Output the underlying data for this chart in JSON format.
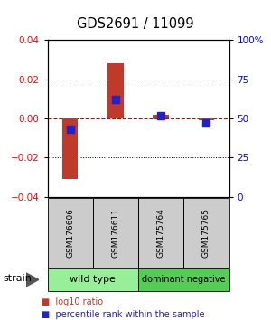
{
  "title": "GDS2691 / 11099",
  "samples": [
    "GSM176606",
    "GSM176611",
    "GSM175764",
    "GSM175765"
  ],
  "log10_ratio": [
    -0.031,
    0.028,
    0.002,
    -0.001
  ],
  "percentile_rank": [
    43,
    62,
    52,
    47
  ],
  "ylim_left": [
    -0.04,
    0.04
  ],
  "ylim_right": [
    0,
    100
  ],
  "yticks_left": [
    -0.04,
    -0.02,
    0,
    0.02,
    0.04
  ],
  "yticks_right": [
    0,
    25,
    50,
    75,
    100
  ],
  "bar_color": "#c0392b",
  "dot_color": "#2222cc",
  "hline_color": "#cc0000",
  "dot_color_line": "#cc0000",
  "sample_box_color": "#cccccc",
  "wt_color": "#99ee99",
  "dn_color": "#55cc55",
  "groups": [
    {
      "label": "wild type",
      "start": 0,
      "end": 2
    },
    {
      "label": "dominant negative",
      "start": 2,
      "end": 4
    }
  ],
  "group_label": "strain",
  "bar_width": 0.35,
  "dot_size": 35,
  "legend": [
    {
      "label": "log10 ratio",
      "color": "#c0392b"
    },
    {
      "label": "percentile rank within the sample",
      "color": "#2222cc"
    }
  ]
}
